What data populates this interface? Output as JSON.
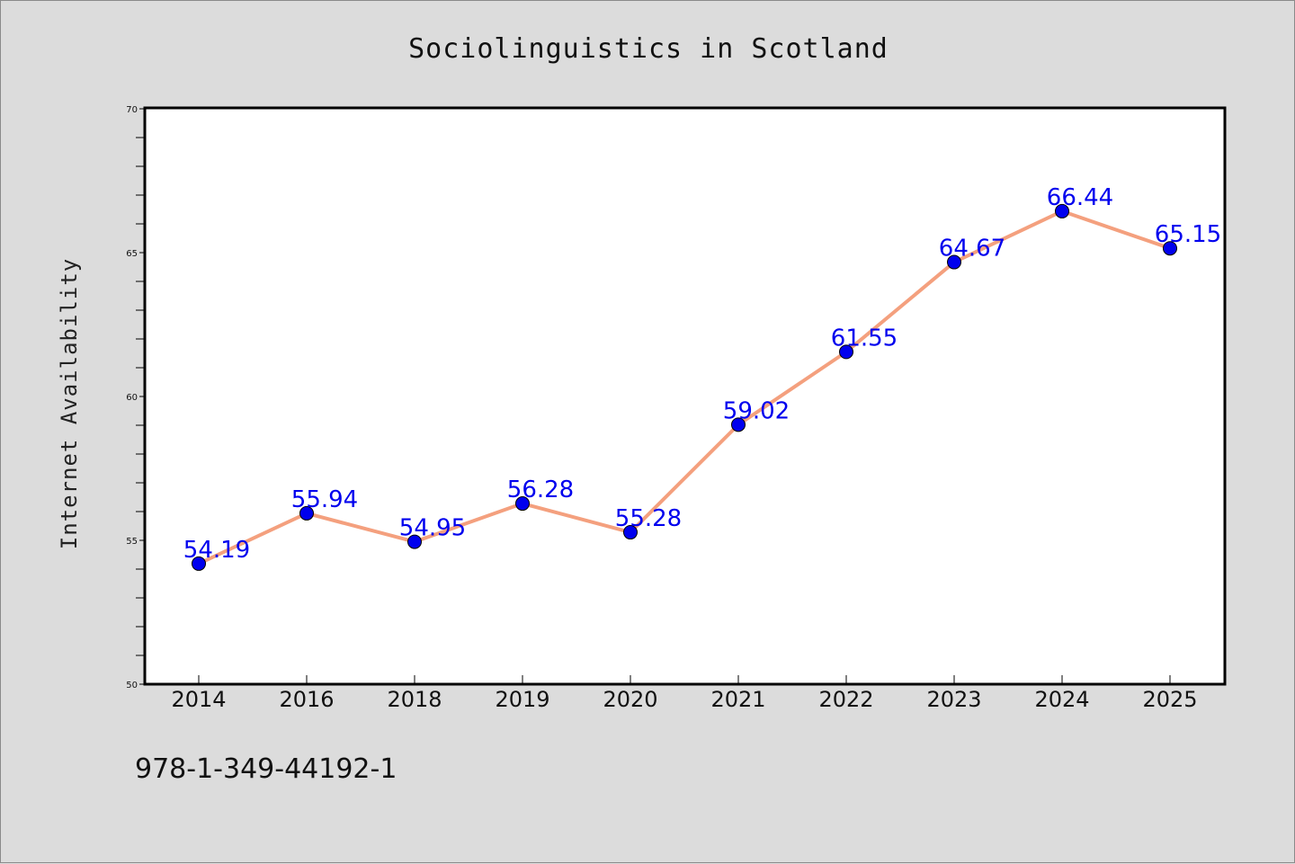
{
  "chart_data": {
    "type": "line",
    "title": "Sociolinguistics in Scotland",
    "xlabel": "",
    "ylabel": "Internet Availability",
    "categories": [
      "2014",
      "2016",
      "2018",
      "2019",
      "2020",
      "2021",
      "2022",
      "2023",
      "2024",
      "2025"
    ],
    "values": [
      54.19,
      55.94,
      54.95,
      56.28,
      55.28,
      59.02,
      61.55,
      64.67,
      66.44,
      65.15
    ],
    "data_labels": [
      "54.19",
      "55.94",
      "54.95",
      "56.28",
      "55.28",
      "59.02",
      "61.55",
      "64.67",
      "66.44",
      "65.15"
    ],
    "ylim": [
      50,
      70
    ],
    "yticks": [
      50,
      55,
      60,
      65,
      70
    ],
    "grid": false,
    "line_color": "#f4a07e",
    "marker_color": "#0000ee"
  },
  "footer": {
    "isbn": "978-1-349-44192-1"
  }
}
